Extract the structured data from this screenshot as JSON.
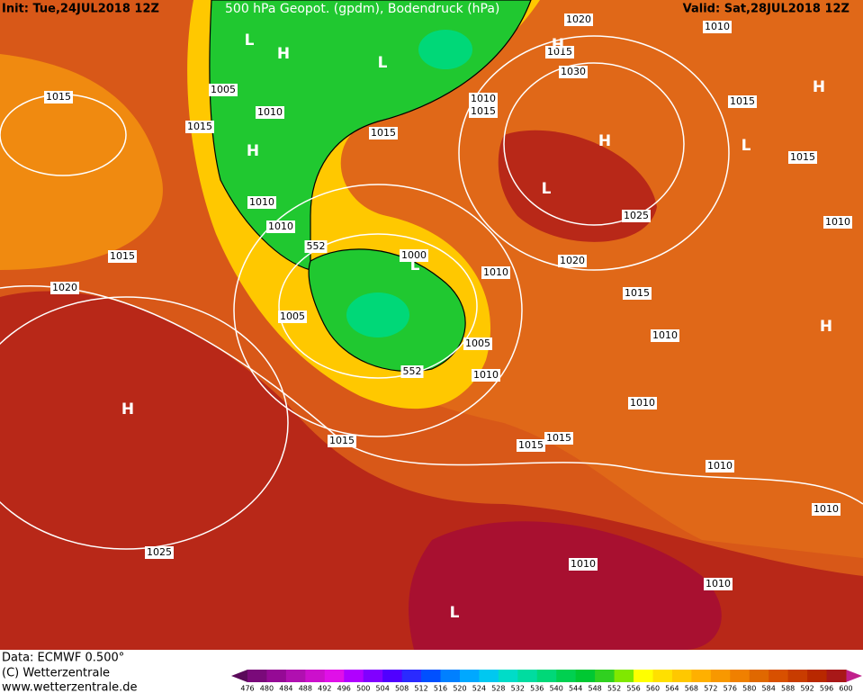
{
  "header": {
    "init": "Init: Tue,24JUL2018 12Z",
    "title": "500 hPa Geopot. (gpdm), Bodendruck (hPa)",
    "valid": "Valid: Sat,28JUL2018 12Z"
  },
  "isobar_labels": [
    "1020",
    "1010",
    "1015",
    "1030",
    "1005",
    "1015",
    "1010",
    "1010",
    "1015",
    "1015",
    "1015",
    "1015",
    "1015",
    "1010",
    "1025",
    "1010",
    "1010",
    "552",
    "1000",
    "1015",
    "1020",
    "1010",
    "1020",
    "1015",
    "1005",
    "1005",
    "1010",
    "552",
    "1010",
    "1010",
    "1015",
    "1015",
    "1015",
    "1010",
    "1010",
    "1025",
    "1010",
    "1010"
  ],
  "pressure_centers": [
    "L",
    "H",
    "L",
    "H",
    "H",
    "H",
    "H",
    "L",
    "L",
    "L",
    "H",
    "H",
    "L"
  ],
  "footer": {
    "data": "Data: ECMWF   0.500°",
    "copyright": "(C) Wetterzentrale",
    "url": "www.wetterzentrale.de"
  },
  "scale": {
    "labels": [
      476,
      480,
      484,
      488,
      492,
      496,
      500,
      504,
      508,
      512,
      516,
      520,
      524,
      528,
      532,
      536,
      540,
      544,
      548,
      552,
      556,
      560,
      564,
      568,
      572,
      576,
      580,
      584,
      588,
      592,
      596,
      600
    ],
    "colors": [
      "#7a0a7a",
      "#950a95",
      "#b010b0",
      "#cc10cc",
      "#e010e8",
      "#b000ff",
      "#8000ff",
      "#5000ff",
      "#2a2aff",
      "#0050ff",
      "#0080ff",
      "#00a8ff",
      "#00c8f0",
      "#00dcc8",
      "#00dca0",
      "#00d878",
      "#00d050",
      "#00c832",
      "#30d020",
      "#80e800",
      "#ffff00",
      "#ffe000",
      "#ffc800",
      "#ffb000",
      "#f89800",
      "#f08000",
      "#e06800",
      "#d85000",
      "#c83c00",
      "#b82800",
      "#a81818"
    ]
  }
}
